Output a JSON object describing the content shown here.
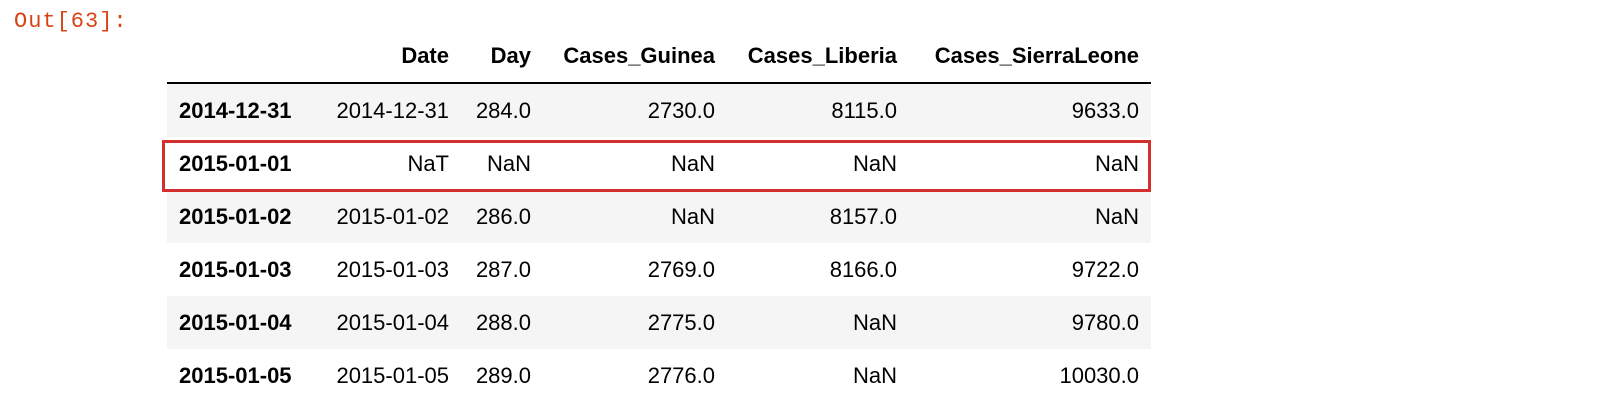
{
  "cell": {
    "out_prompt": "Out[63]:"
  },
  "table": {
    "columns": [
      "",
      "Date",
      "Day",
      "Cases_Guinea",
      "Cases_Liberia",
      "Cases_SierraLeone"
    ],
    "rows": [
      {
        "index": "2014-12-31",
        "cells": [
          "2014-12-31",
          "284.0",
          "2730.0",
          "8115.0",
          "9633.0"
        ]
      },
      {
        "index": "2015-01-01",
        "cells": [
          "NaT",
          "NaN",
          "NaN",
          "NaN",
          "NaN"
        ]
      },
      {
        "index": "2015-01-02",
        "cells": [
          "2015-01-02",
          "286.0",
          "NaN",
          "8157.0",
          "NaN"
        ]
      },
      {
        "index": "2015-01-03",
        "cells": [
          "2015-01-03",
          "287.0",
          "2769.0",
          "8166.0",
          "9722.0"
        ]
      },
      {
        "index": "2015-01-04",
        "cells": [
          "2015-01-04",
          "288.0",
          "2775.0",
          "NaN",
          "9780.0"
        ]
      },
      {
        "index": "2015-01-05",
        "cells": [
          "2015-01-05",
          "289.0",
          "2776.0",
          "NaN",
          "10030.0"
        ]
      }
    ]
  },
  "highlight": {
    "row_index": "2015-01-01",
    "color": "#d32f2f"
  },
  "colors": {
    "prompt": "#d84315",
    "stripe": "#f5f5f5"
  }
}
